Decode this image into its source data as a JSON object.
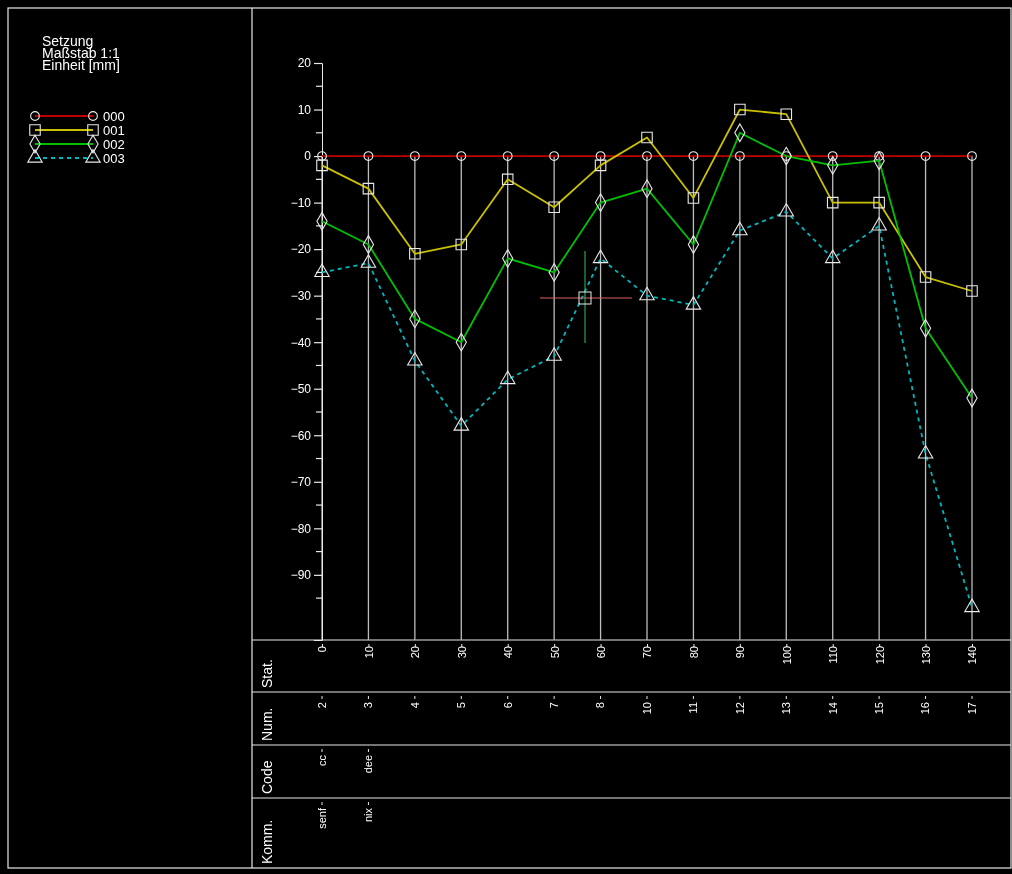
{
  "chart_data": {
    "type": "line",
    "title": "Setzung",
    "annotations": [
      "Maßstab 1:1",
      "Einheit [mm]",
      {
        "text": "Stat."
      },
      {
        "text": "Num."
      },
      "2",
      "3",
      "4",
      "5",
      "6",
      "7",
      "8",
      "10",
      "11",
      "12",
      "13",
      "14",
      "15",
      "16",
      "17",
      {
        "text": "Code"
      },
      "cc",
      "dee",
      {
        "text": "Komm."
      },
      "senf",
      "nix"
    ],
    "categories": [
      "0",
      "10",
      "20",
      "30",
      "40",
      "50",
      "60",
      "70",
      "80",
      "90",
      "100",
      "110",
      "120",
      "130",
      "140"
    ],
    "ylim": [
      -104,
      20
    ],
    "yticks": [
      -90,
      -80,
      -70,
      -60,
      -50,
      -40,
      -30,
      -20,
      -10,
      0,
      10,
      20
    ],
    "grid": "x",
    "legend": "top left",
    "series": [
      {
        "name": "000",
        "color": "#c00000",
        "marker": "circle",
        "line_style": "solid",
        "values": [
          0,
          0,
          0,
          0,
          0,
          0,
          0,
          0,
          0,
          0,
          0,
          0,
          0,
          0,
          0
        ]
      },
      {
        "name": "001",
        "color": "#c8c000",
        "marker": "square",
        "line_style": "solid",
        "values": [
          -2,
          -7,
          -21,
          -19,
          -5,
          -11,
          -2,
          4,
          -9,
          10,
          9,
          -10,
          -10,
          -26,
          -29
        ]
      },
      {
        "name": "002",
        "color": "#00c000",
        "marker": "diamond",
        "line_style": "solid",
        "values": [
          -14,
          -19,
          -35,
          -40,
          -22,
          -25,
          -10,
          -7,
          -19,
          5,
          0,
          -2,
          -1,
          -37,
          -52
        ]
      },
      {
        "name": "003",
        "color": "#00b8c0",
        "marker": "triangle",
        "line_style": "dashed",
        "values": [
          -25,
          -23,
          -44,
          -58,
          -48,
          -43,
          -22,
          -30,
          -32,
          -16,
          -12,
          -22,
          -15,
          -64,
          -97
        ]
      }
    ]
  }
}
